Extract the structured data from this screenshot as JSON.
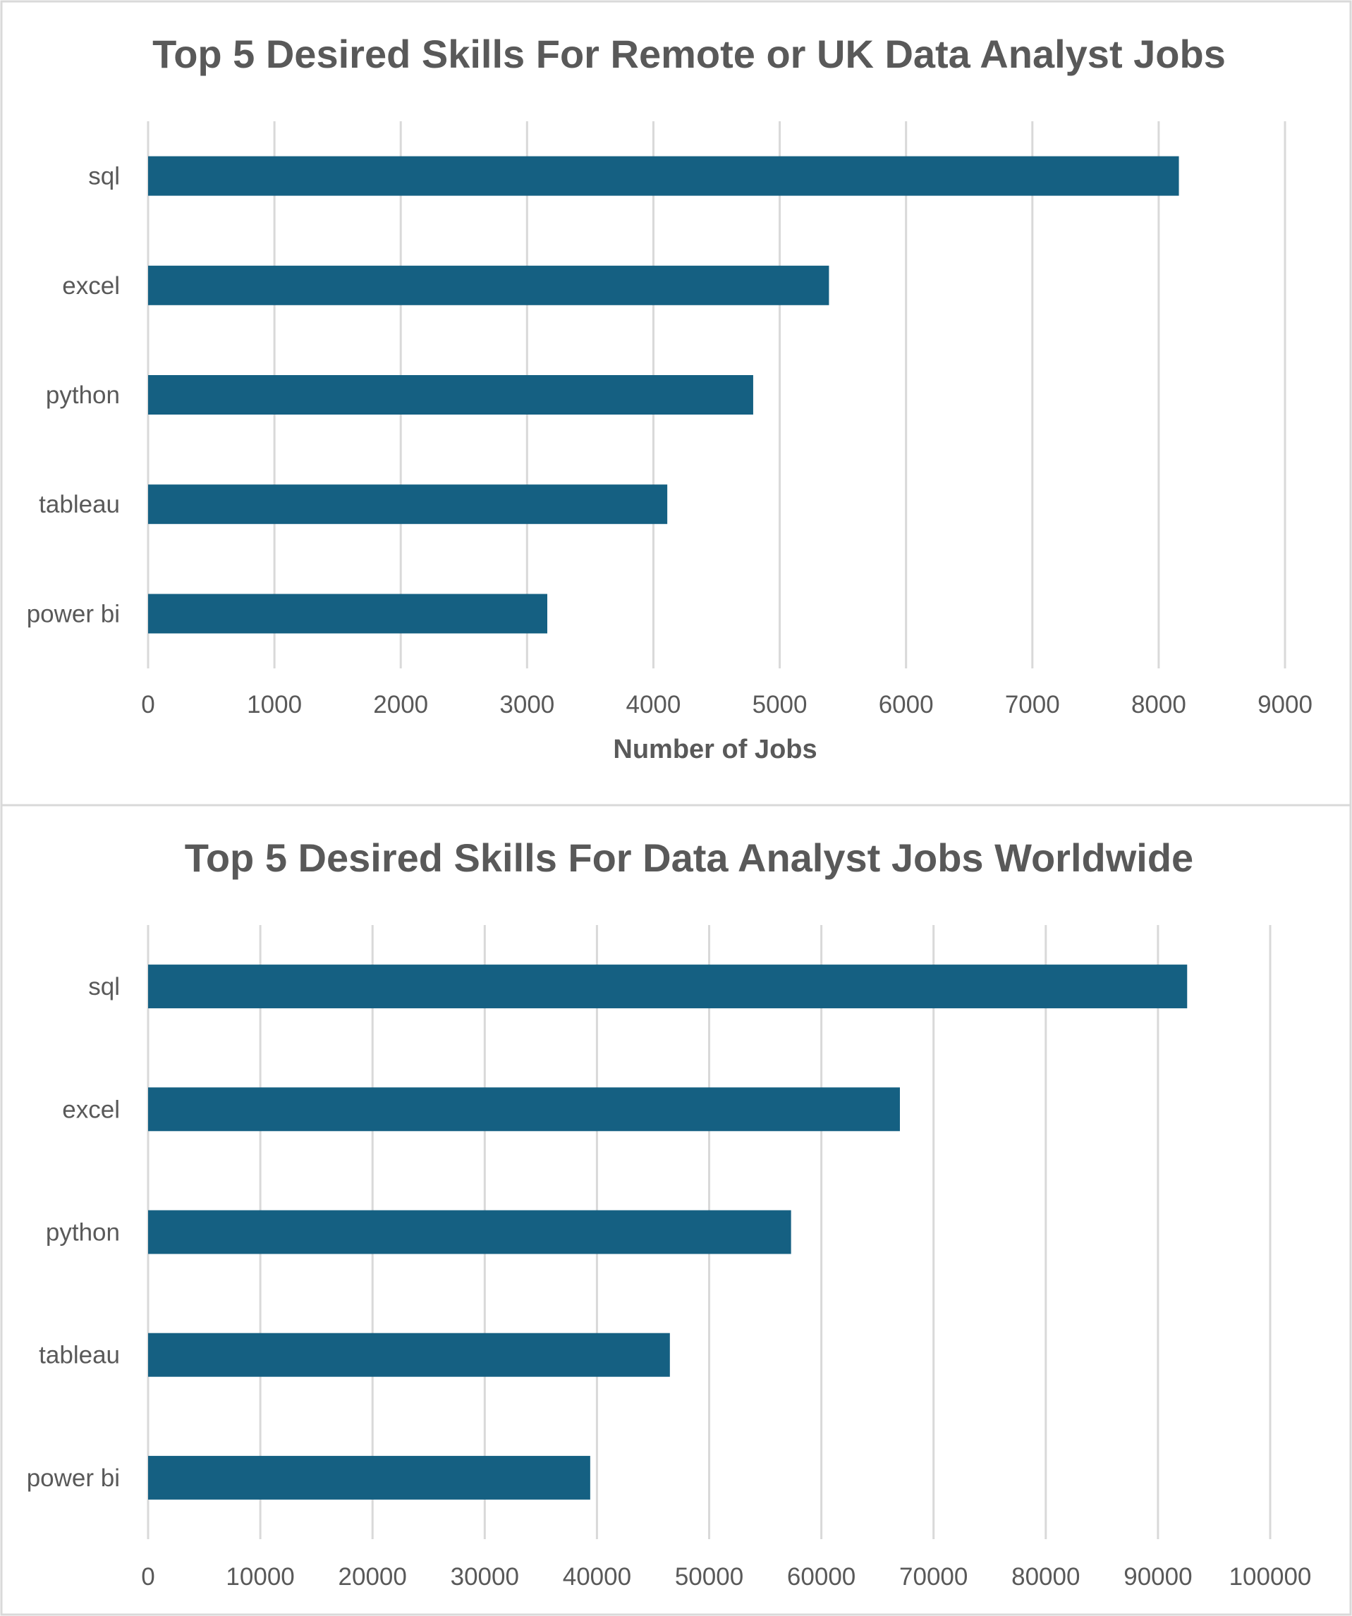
{
  "chart_data": [
    {
      "type": "bar",
      "orientation": "horizontal",
      "title": "Top 5 Desired Skills For Remote or UK Data Analyst Jobs",
      "xlabel": "Number of Jobs",
      "ylabel": "",
      "categories": [
        "sql",
        "excel",
        "python",
        "tableau",
        "power bi"
      ],
      "values": [
        8160,
        5390,
        4790,
        4110,
        3160
      ],
      "xlim": [
        0,
        9000
      ],
      "ticks": [
        "0",
        "1000",
        "2000",
        "3000",
        "4000",
        "5000",
        "6000",
        "7000",
        "8000",
        "9000"
      ],
      "grid": true,
      "legend": "none",
      "bar_color": "#156082"
    },
    {
      "type": "bar",
      "orientation": "horizontal",
      "title": "Top 5 Desired Skills For Data Analyst Jobs Worldwide",
      "xlabel": "",
      "ylabel": "",
      "categories": [
        "sql",
        "excel",
        "python",
        "tableau",
        "power bi"
      ],
      "values": [
        92600,
        67000,
        57300,
        46500,
        39400
      ],
      "xlim": [
        0,
        100000
      ],
      "ticks": [
        "0",
        "10000",
        "20000",
        "30000",
        "40000",
        "50000",
        "60000",
        "70000",
        "80000",
        "90000",
        "100000"
      ],
      "grid": true,
      "legend": "none",
      "bar_color": "#156082"
    }
  ]
}
